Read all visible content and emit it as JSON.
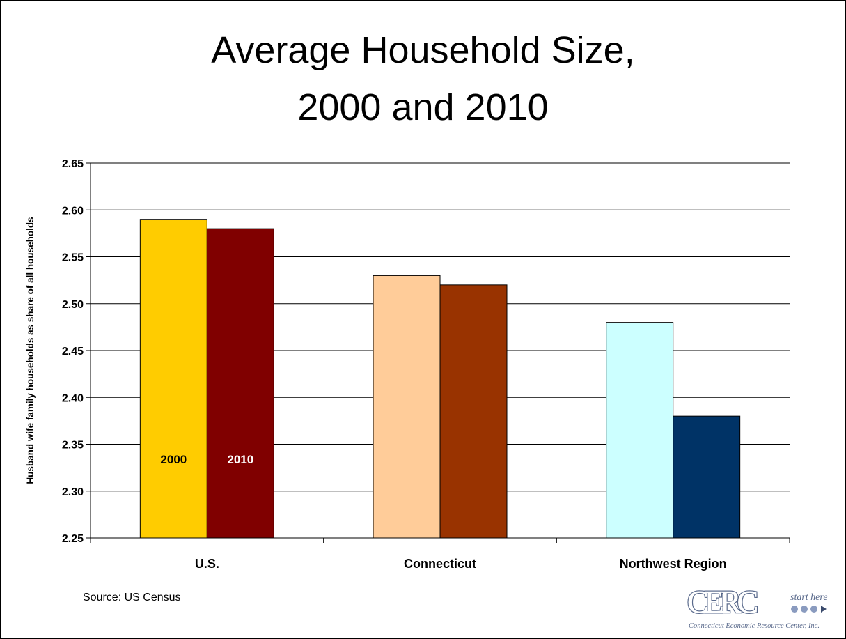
{
  "title_line1": "Average Household Size,",
  "title_line2": "2000 and 2010",
  "source": "Source:  US Census",
  "logo": {
    "mark": "CERC",
    "tagline": "start here",
    "org": "Connecticut Economic Resource Center, Inc."
  },
  "colors": {
    "us_2000": "#FFCC00",
    "us_2010": "#800000",
    "ct_2000": "#FFCC99",
    "ct_2010": "#993300",
    "nw_2000": "#CCFFFF",
    "nw_2010": "#003366"
  },
  "chart_data": {
    "type": "bar",
    "title": "Average Household Size, 2000 and 2010",
    "ylabel": "Husband wife family households as share of all households",
    "xlabel": "",
    "categories": [
      "U.S.",
      "Connecticut",
      "Northwest Region"
    ],
    "series": [
      {
        "name": "2000",
        "values": [
          2.59,
          2.53,
          2.48
        ]
      },
      {
        "name": "2010",
        "values": [
          2.58,
          2.52,
          2.38
        ]
      }
    ],
    "ylim": [
      2.25,
      2.65
    ],
    "yticks": [
      "2.25",
      "2.30",
      "2.35",
      "2.40",
      "2.45",
      "2.50",
      "2.55",
      "2.60",
      "2.65"
    ],
    "grid": true,
    "legend": "labels inside U.S. bars"
  }
}
